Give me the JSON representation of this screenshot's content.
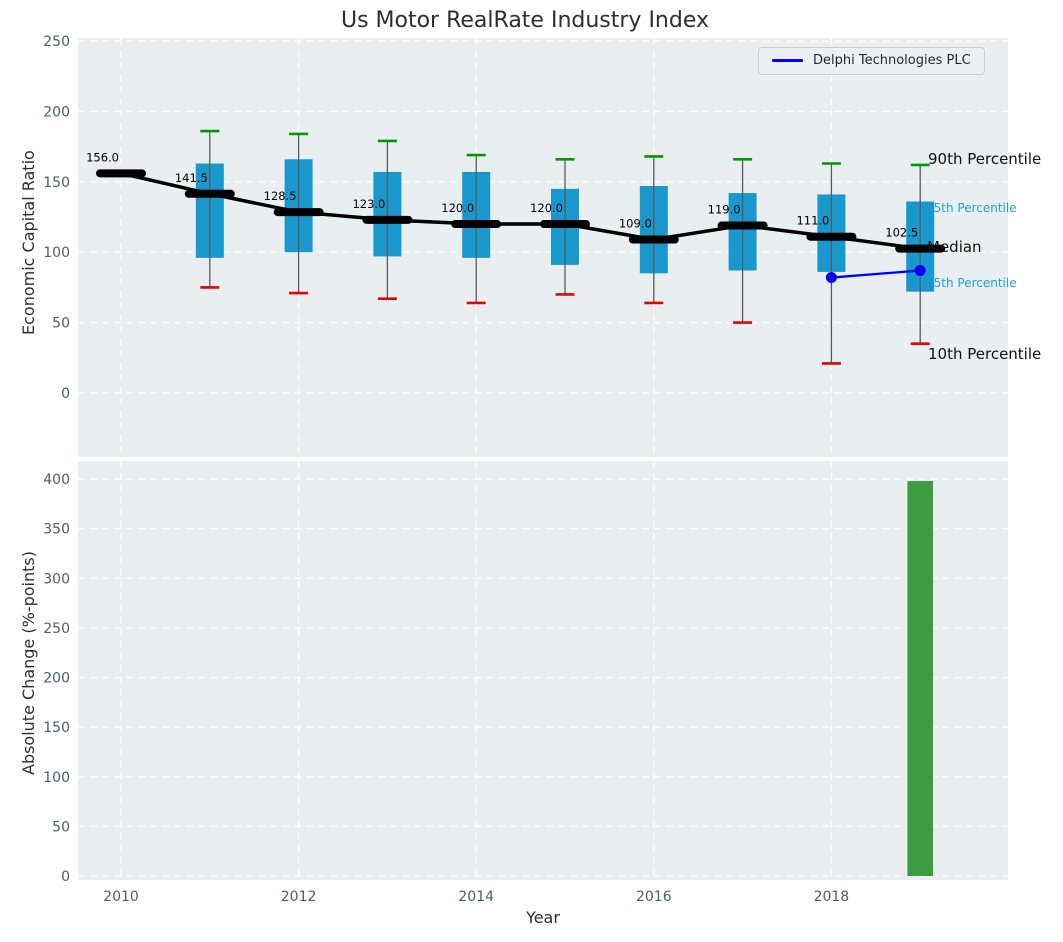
{
  "title": "Us Motor RealRate Industry Index",
  "legend": {
    "label": "Delphi Technologies PLC"
  },
  "colors": {
    "box": "#1898cc",
    "cap_high": "#009a00",
    "cap_low": "#e90000",
    "median": "#000000",
    "company_line": "#0000ff",
    "bar": "#3d9b40",
    "annotation_accent": "#1ba3d4",
    "annotation_text": "#111111",
    "plot_bg": "#e9eef1",
    "grid": "#ffffff",
    "tick": "#4a5d72",
    "whisker": "#5a5a5a"
  },
  "chart_data": [
    {
      "type": "boxplot-line",
      "title": "Us Motor RealRate Industry Index",
      "ylabel": "Economic Capital Ratio",
      "ylim": [
        -45,
        252
      ],
      "yticks": [
        0,
        50,
        100,
        150,
        200,
        250
      ],
      "grid": true,
      "categories": [
        2010,
        2011,
        2012,
        2013,
        2014,
        2015,
        2016,
        2017,
        2018,
        2019
      ],
      "series": [
        {
          "name": "Median",
          "values": [
            156.0,
            141.5,
            128.5,
            123.0,
            120.0,
            120.0,
            109.0,
            119.0,
            111.0,
            102.5
          ]
        },
        {
          "name": "90th Percentile",
          "values": [
            null,
            186,
            184,
            179,
            169,
            166,
            168,
            166,
            163,
            162
          ]
        },
        {
          "name": "75th Percentile",
          "values": [
            null,
            163,
            166,
            157,
            157,
            145,
            147,
            142,
            141,
            136
          ]
        },
        {
          "name": "25th Percentile",
          "values": [
            null,
            96,
            100,
            97,
            96,
            91,
            85,
            87,
            86,
            72
          ]
        },
        {
          "name": "10th Percentile",
          "values": [
            null,
            75,
            71,
            67,
            64,
            70,
            64,
            50,
            21,
            35
          ]
        }
      ],
      "median_value_labels": [
        "156.0",
        "141.5",
        "128.5",
        "123.0",
        "120.0",
        "120.0",
        "109.0",
        "119.0",
        "111.0",
        "102.5"
      ],
      "company_series": {
        "name": "Delphi Technologies PLC",
        "x": [
          2018,
          2019
        ],
        "values": [
          82,
          87
        ]
      },
      "annotations": [
        {
          "text": "90th Percentile",
          "size": "large"
        },
        {
          "text": "75th Percentile",
          "size": "small"
        },
        {
          "text": "Median",
          "size": "large"
        },
        {
          "text": "25th Percentile",
          "size": "small"
        },
        {
          "text": "10th Percentile",
          "size": "large"
        }
      ],
      "legend_entries": [
        "Delphi Technologies PLC"
      ],
      "legend_position": "upper right"
    },
    {
      "type": "bar",
      "ylabel": "Absolute Change (%-points)",
      "xlabel": "Year",
      "ylim": [
        0,
        422
      ],
      "yticks": [
        0,
        50,
        100,
        150,
        200,
        250,
        300,
        350,
        400
      ],
      "xticks": [
        2010,
        2012,
        2014,
        2016,
        2018
      ],
      "grid": true,
      "bars": [
        {
          "x": 2019,
          "value": 398
        }
      ]
    }
  ]
}
